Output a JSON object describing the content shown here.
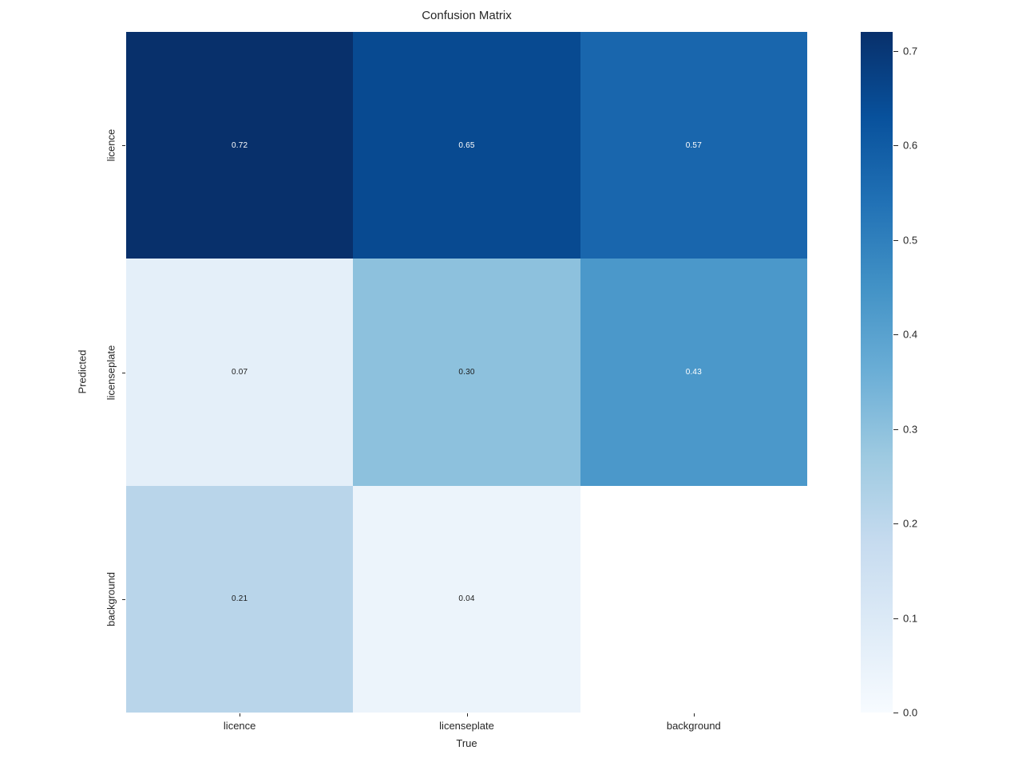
{
  "chart_data": {
    "type": "heatmap",
    "title": "Confusion Matrix",
    "xlabel": "True",
    "ylabel": "Predicted",
    "x_categories": [
      "licence",
      "licenseplate",
      "background"
    ],
    "y_categories": [
      "licence",
      "licenseplate",
      "background"
    ],
    "values": [
      [
        0.72,
        0.65,
        0.57
      ],
      [
        0.07,
        0.3,
        0.43
      ],
      [
        0.21,
        0.04,
        null
      ]
    ],
    "annotations": [
      [
        "0.72",
        "0.65",
        "0.57"
      ],
      [
        "0.07",
        "0.30",
        "0.43"
      ],
      [
        "0.21",
        "0.04",
        ""
      ]
    ],
    "colormap": "Blues",
    "vmin": 0.0,
    "vmax": 0.72,
    "grid": false,
    "legend_position": "right-colorbar",
    "colorbar_ticks": [
      "0.0",
      "0.1",
      "0.2",
      "0.3",
      "0.4",
      "0.5",
      "0.6",
      "0.7"
    ],
    "cell_colors": [
      [
        "#08306b",
        "#084a91",
        "#1966ad"
      ],
      [
        "#e4eff9",
        "#8dc1dd",
        "#4b98ca"
      ],
      [
        "#b9d5ea",
        "#ecf4fb",
        "#ffffff"
      ]
    ],
    "cell_text_colors": [
      [
        "#ffffff",
        "#ffffff",
        "#ffffff"
      ],
      [
        "#1a1a1a",
        "#1a1a1a",
        "#ffffff"
      ],
      [
        "#1a1a1a",
        "#1a1a1a",
        "#1a1a1a"
      ]
    ],
    "colorbar_gradient": [
      "#f7fbff",
      "#deebf7",
      "#c6dbef",
      "#9ecae1",
      "#6baed6",
      "#4292c6",
      "#2171b5",
      "#08519c",
      "#08306b"
    ],
    "axis_text_color": "#262626"
  }
}
